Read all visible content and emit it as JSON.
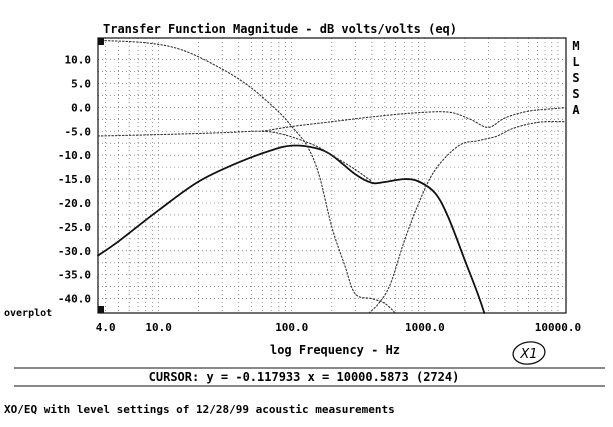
{
  "chart_data": {
    "type": "line",
    "title": "Transfer Function Magnitude - dB volts/volts (eq)",
    "xlabel": "log Frequency - Hz",
    "ylabel": "",
    "x_scale": "log",
    "xlim": [
      3.5,
      11500
    ],
    "ylim": [
      -43,
      14.5
    ],
    "grid": true,
    "x_tick_labels": [
      {
        "value": 4,
        "label": "4.0"
      },
      {
        "value": 10,
        "label": "10.0"
      },
      {
        "value": 100,
        "label": "100.0"
      },
      {
        "value": 1000,
        "label": "1000.0"
      },
      {
        "value": 10000,
        "label": "10000.0"
      }
    ],
    "y_tick_labels": [
      {
        "value": 10,
        "label": "10.0"
      },
      {
        "value": 5,
        "label": "5.0"
      },
      {
        "value": 0,
        "label": "0.0"
      },
      {
        "value": -5,
        "label": "-5.0"
      },
      {
        "value": -10,
        "label": "-10.0"
      },
      {
        "value": -15,
        "label": "-15.0"
      },
      {
        "value": -20,
        "label": "-20.0"
      },
      {
        "value": -25,
        "label": "-25.0"
      },
      {
        "value": -30,
        "label": "-30.0"
      },
      {
        "value": -35,
        "label": "-35.0"
      },
      {
        "value": -40,
        "label": "-40.0"
      }
    ],
    "series": [
      {
        "style": "solid",
        "color": "#111111",
        "points": [
          [
            3.5,
            -31
          ],
          [
            5,
            -28
          ],
          [
            10,
            -21.5
          ],
          [
            20,
            -15.5
          ],
          [
            40,
            -11.5
          ],
          [
            70,
            -9
          ],
          [
            100,
            -8
          ],
          [
            150,
            -8.5
          ],
          [
            200,
            -10
          ],
          [
            300,
            -14
          ],
          [
            400,
            -15.8
          ],
          [
            500,
            -15.6
          ],
          [
            700,
            -15
          ],
          [
            900,
            -15.5
          ],
          [
            1200,
            -18
          ],
          [
            1500,
            -23
          ],
          [
            2000,
            -32
          ],
          [
            2500,
            -39
          ],
          [
            2800,
            -43
          ]
        ]
      },
      {
        "style": "dotted",
        "color": "#333333",
        "points": [
          [
            3.5,
            14
          ],
          [
            8,
            13.5
          ],
          [
            15,
            12
          ],
          [
            30,
            8
          ],
          [
            50,
            4
          ],
          [
            80,
            -1
          ],
          [
            100,
            -4
          ],
          [
            130,
            -8
          ],
          [
            160,
            -14
          ],
          [
            200,
            -25
          ],
          [
            250,
            -33
          ],
          [
            300,
            -39
          ],
          [
            400,
            -40
          ],
          [
            500,
            -41
          ],
          [
            600,
            -43
          ]
        ]
      },
      {
        "style": "dotted",
        "color": "#333333",
        "points": [
          [
            3.5,
            -6
          ],
          [
            10,
            -5.7
          ],
          [
            30,
            -5.3
          ],
          [
            60,
            -5
          ],
          [
            90,
            -5.8
          ],
          [
            150,
            -8
          ],
          [
            200,
            -10
          ],
          [
            300,
            -13
          ],
          [
            400,
            -15.5
          ]
        ]
      },
      {
        "style": "dotted",
        "color": "#333333",
        "points": [
          [
            380,
            -43
          ],
          [
            450,
            -41
          ],
          [
            550,
            -37
          ],
          [
            700,
            -28
          ],
          [
            900,
            -20
          ],
          [
            1200,
            -13
          ],
          [
            1800,
            -8
          ],
          [
            2500,
            -7
          ],
          [
            3000,
            -6.5
          ],
          [
            3500,
            -6
          ],
          [
            4500,
            -4.5
          ],
          [
            6000,
            -3.5
          ],
          [
            8000,
            -3
          ],
          [
            11500,
            -3
          ]
        ]
      },
      {
        "style": "dotted",
        "color": "#333333",
        "points": [
          [
            60,
            -5
          ],
          [
            100,
            -4
          ],
          [
            200,
            -3
          ],
          [
            400,
            -2
          ],
          [
            800,
            -1.2
          ],
          [
            1500,
            -1
          ],
          [
            2200,
            -2.5
          ],
          [
            3000,
            -4.2
          ],
          [
            4000,
            -2.2
          ],
          [
            6000,
            -0.8
          ],
          [
            10000,
            -0.2
          ],
          [
            11500,
            -0.1
          ]
        ]
      }
    ]
  },
  "side_letters": [
    "M",
    "L",
    "S",
    "S",
    "A"
  ],
  "overplot_label": "overplot",
  "cursor_readout": "CURSOR: y = -0.117933 x = 10000.5873 (2724)",
  "handwritten_mark": "X1",
  "caption": "XO/EQ with level settings of 12/28/99 acoustic measurements"
}
